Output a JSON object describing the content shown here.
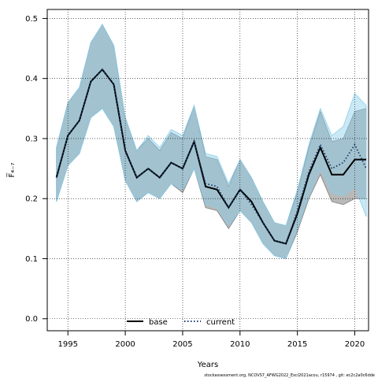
{
  "chart_data": {
    "type": "line",
    "title": "",
    "xlabel": "Years",
    "ylabel": "F̅₄₋₇",
    "xlim": [
      1993.2,
      2021.2
    ],
    "ylim": [
      -0.02,
      0.515
    ],
    "x_ticks": [
      1995,
      2000,
      2005,
      2010,
      2015,
      2020
    ],
    "y_ticks": [
      0.0,
      0.1,
      0.2,
      0.3,
      0.4,
      0.5
    ],
    "y_tick_labels": [
      "0.0",
      "0.1",
      "0.2",
      "0.3",
      "0.4",
      "0.5"
    ],
    "grid": true,
    "legend_placement": "bottom-center",
    "x": [
      1994,
      1995,
      1996,
      1997,
      1998,
      1999,
      2000,
      2001,
      2002,
      2003,
      2004,
      2005,
      2006,
      2007,
      2008,
      2009,
      2010,
      2011,
      2012,
      2013,
      2014,
      2015,
      2016,
      2017,
      2018,
      2019,
      2020,
      2021
    ],
    "series": [
      {
        "name": "base",
        "color": "#000000",
        "band_color": "#808080",
        "line_style": "solid",
        "values": [
          0.235,
          0.305,
          0.33,
          0.395,
          0.415,
          0.39,
          0.28,
          0.235,
          0.25,
          0.235,
          0.26,
          0.25,
          0.295,
          0.22,
          0.215,
          0.185,
          0.215,
          0.195,
          0.16,
          0.13,
          0.125,
          0.175,
          0.24,
          0.285,
          0.24,
          0.24,
          0.265,
          0.265
        ],
        "lower": [
          0.195,
          0.255,
          0.275,
          0.335,
          0.35,
          0.32,
          0.23,
          0.195,
          0.21,
          0.2,
          0.225,
          0.21,
          0.25,
          0.185,
          0.18,
          0.15,
          0.18,
          0.16,
          0.125,
          0.105,
          0.1,
          0.145,
          0.2,
          0.24,
          0.195,
          0.19,
          0.2,
          0.2
        ],
        "upper": [
          0.285,
          0.36,
          0.385,
          0.46,
          0.49,
          0.455,
          0.335,
          0.28,
          0.3,
          0.28,
          0.31,
          0.3,
          0.355,
          0.27,
          0.265,
          0.22,
          0.265,
          0.235,
          0.195,
          0.16,
          0.155,
          0.21,
          0.285,
          0.345,
          0.295,
          0.3,
          0.345,
          0.35
        ]
      },
      {
        "name": "current",
        "color": "#1a3a6b",
        "band_color": "#87ceeb",
        "line_style": "dotted",
        "values": [
          0.235,
          0.305,
          0.33,
          0.395,
          0.415,
          0.39,
          0.28,
          0.235,
          0.25,
          0.235,
          0.26,
          0.25,
          0.295,
          0.225,
          0.22,
          0.185,
          0.215,
          0.19,
          0.16,
          0.13,
          0.125,
          0.18,
          0.245,
          0.29,
          0.25,
          0.26,
          0.29,
          0.25
        ],
        "lower": [
          0.195,
          0.255,
          0.275,
          0.335,
          0.35,
          0.32,
          0.23,
          0.195,
          0.21,
          0.2,
          0.225,
          0.215,
          0.25,
          0.19,
          0.185,
          0.155,
          0.18,
          0.16,
          0.125,
          0.105,
          0.1,
          0.15,
          0.205,
          0.25,
          0.21,
          0.205,
          0.22,
          0.17
        ],
        "upper": [
          0.285,
          0.36,
          0.385,
          0.46,
          0.49,
          0.455,
          0.335,
          0.28,
          0.305,
          0.285,
          0.315,
          0.305,
          0.355,
          0.275,
          0.27,
          0.225,
          0.265,
          0.235,
          0.195,
          0.16,
          0.155,
          0.215,
          0.29,
          0.35,
          0.305,
          0.32,
          0.375,
          0.355
        ]
      }
    ],
    "footer": "stockassessment.org, NCOVS7_AFWG2022_Excl2021acou, r15974 , git: ec2c2a0c6dde"
  }
}
